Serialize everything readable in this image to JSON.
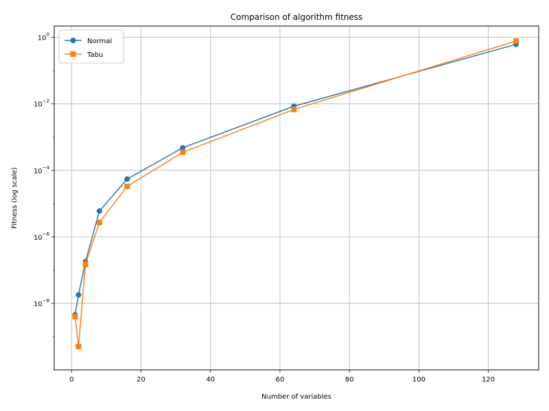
{
  "chart_data": {
    "type": "line",
    "title": "Comparison of algorithm fitness",
    "xlabel": "Number of variables",
    "ylabel": "Fitness (log scale)",
    "xlim": [
      -5,
      134.5
    ],
    "ylim": [
      1e-10,
      2.2
    ],
    "yscale": "log",
    "grid": true,
    "legend_position": "top-left",
    "x_ticks": [
      0,
      20,
      40,
      60,
      80,
      100,
      120
    ],
    "x_tick_labels": [
      "0",
      "20",
      "40",
      "60",
      "80",
      "100",
      "120"
    ],
    "y_ticks": [
      1e-08,
      1e-06,
      0.0001,
      0.01,
      1
    ],
    "y_tick_labels": [
      {
        "base": "10",
        "exp": "−8"
      },
      {
        "base": "10",
        "exp": "−6"
      },
      {
        "base": "10",
        "exp": "−4"
      },
      {
        "base": "10",
        "exp": "−2"
      },
      {
        "base": "10",
        "exp": "0"
      }
    ],
    "series": [
      {
        "name": "Normal",
        "color": "#1f77b4",
        "marker": "circle",
        "x": [
          1,
          2,
          4,
          8,
          16,
          32,
          64,
          128
        ],
        "y": [
          4.5e-09,
          1.8e-08,
          1.8e-07,
          6e-06,
          5.5e-05,
          0.00048,
          0.0085,
          0.62
        ]
      },
      {
        "name": "Tabu",
        "color": "#ff7f0e",
        "marker": "square",
        "x": [
          1,
          2,
          4,
          8,
          16,
          32,
          64,
          128
        ],
        "y": [
          4e-09,
          5e-10,
          1.5e-07,
          2.7e-06,
          3.3e-05,
          0.00035,
          0.0068,
          0.78
        ]
      }
    ]
  }
}
